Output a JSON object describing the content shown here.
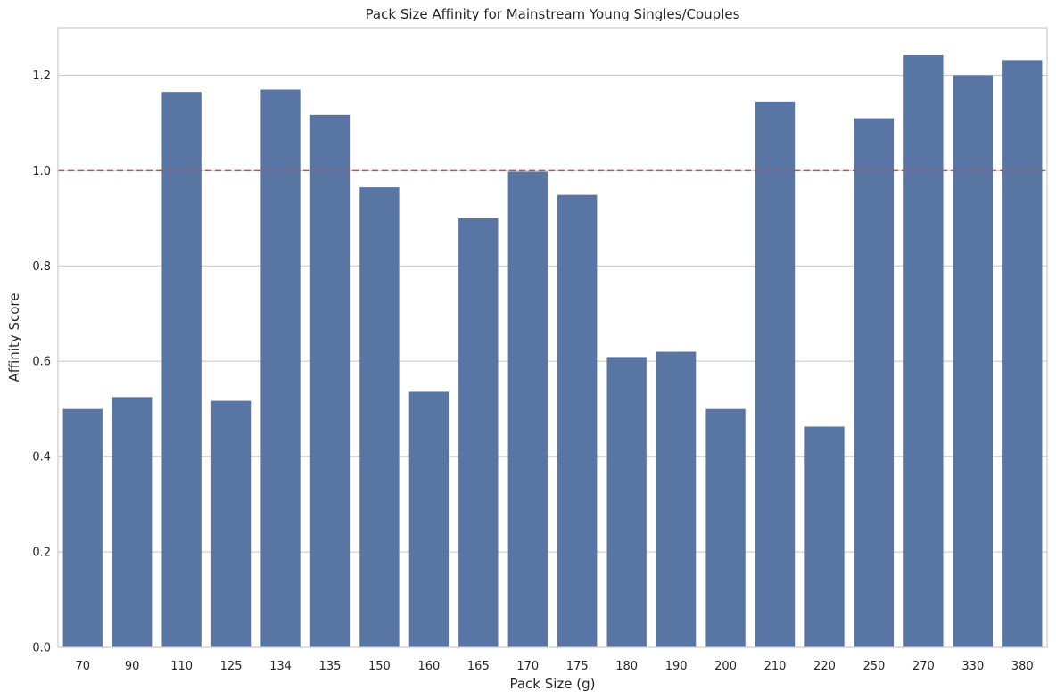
{
  "chart_data": {
    "type": "bar",
    "title": "Pack Size Affinity for Mainstream Young Singles/Couples",
    "xlabel": "Pack Size (g)",
    "ylabel": "Affinity Score",
    "categories": [
      "70",
      "90",
      "110",
      "125",
      "134",
      "135",
      "150",
      "160",
      "165",
      "170",
      "175",
      "180",
      "190",
      "200",
      "210",
      "220",
      "250",
      "270",
      "330",
      "380"
    ],
    "values": [
      0.5,
      0.525,
      1.165,
      0.517,
      1.17,
      1.117,
      0.965,
      0.536,
      0.9,
      0.998,
      0.949,
      0.609,
      0.62,
      0.5,
      1.145,
      0.463,
      1.11,
      1.242,
      1.2,
      1.232
    ],
    "ylim": [
      0,
      1.3
    ],
    "yticks": [
      0.0,
      0.2,
      0.4,
      0.6,
      0.8,
      1.0,
      1.2
    ],
    "ytick_labels": [
      "0.0",
      "0.2",
      "0.4",
      "0.6",
      "0.8",
      "1.0",
      "1.2"
    ],
    "reference_line": {
      "y": 1.0,
      "style": "dashed",
      "color": "#c44e52"
    },
    "bar_color": "#5975a4",
    "grid": "horizontal",
    "legend": "none"
  }
}
